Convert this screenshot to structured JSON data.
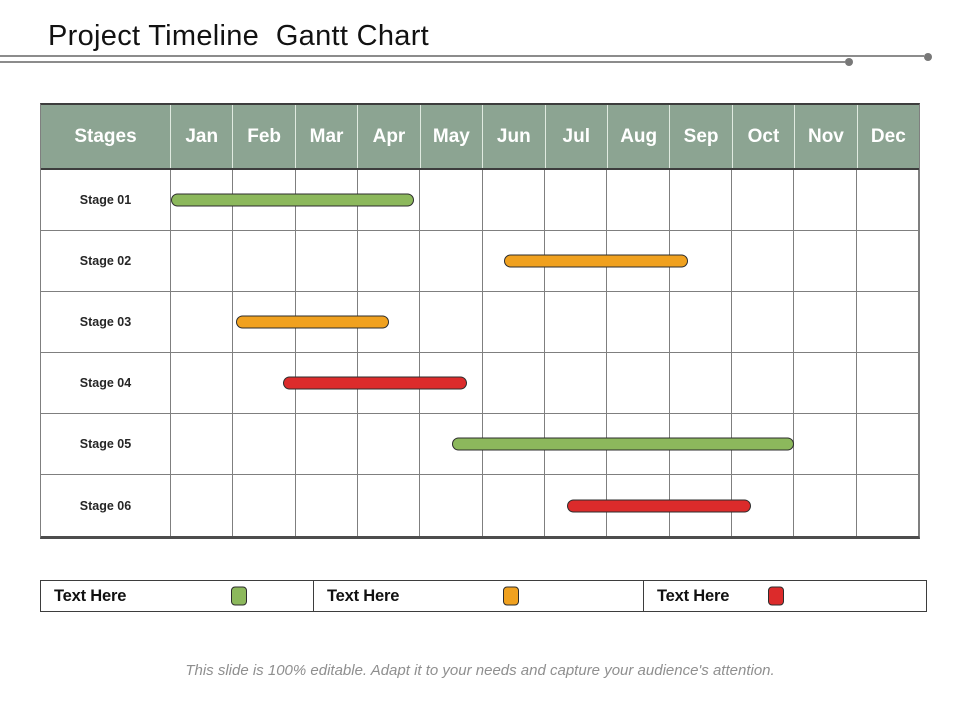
{
  "title": "Project Timeline  Gantt Chart",
  "footer": "This slide is 100% editable. Adapt it to your needs and capture your audience's attention.",
  "chart_data": {
    "type": "bar",
    "variant": "gantt",
    "title": "Project Timeline Gantt Chart",
    "stages_header": "Stages",
    "columns": [
      "Jan",
      "Feb",
      "Mar",
      "Apr",
      "May",
      "Jun",
      "Jul",
      "Aug",
      "Sep",
      "Oct",
      "Nov",
      "Dec"
    ],
    "x_range_months": [
      0,
      12
    ],
    "grid": true,
    "tasks": [
      {
        "label": "Stage 01",
        "start_month": 0.0,
        "end_month": 3.9,
        "color": "green"
      },
      {
        "label": "Stage 02",
        "start_month": 5.35,
        "end_month": 8.3,
        "color": "orange"
      },
      {
        "label": "Stage 03",
        "start_month": 1.05,
        "end_month": 3.5,
        "color": "orange"
      },
      {
        "label": "Stage 04",
        "start_month": 1.8,
        "end_month": 4.75,
        "color": "red"
      },
      {
        "label": "Stage 05",
        "start_month": 4.5,
        "end_month": 10.0,
        "color": "green"
      },
      {
        "label": "Stage 06",
        "start_month": 6.35,
        "end_month": 9.3,
        "color": "red"
      }
    ],
    "palette": {
      "green": "#8CB85C",
      "orange": "#F0A11F",
      "red": "#DC2B2B"
    }
  },
  "legend": {
    "items": [
      {
        "label": "Text Here",
        "color": "green"
      },
      {
        "label": "Text Here",
        "color": "orange"
      },
      {
        "label": "Text Here",
        "color": "red"
      }
    ]
  },
  "styles": {
    "header_bg": "#8CA492",
    "header_divider": "#E0EAE0",
    "grid_color": "#7F7F7F",
    "dark_border": "#3D3D3D",
    "bottom_border": "#4D4D4D",
    "bar_outline": "#2D2D2D",
    "rule_color": "#8C8C8C",
    "dot_color": "#787878",
    "title_color": "#121212",
    "footer_color": "#8F8F8F"
  }
}
